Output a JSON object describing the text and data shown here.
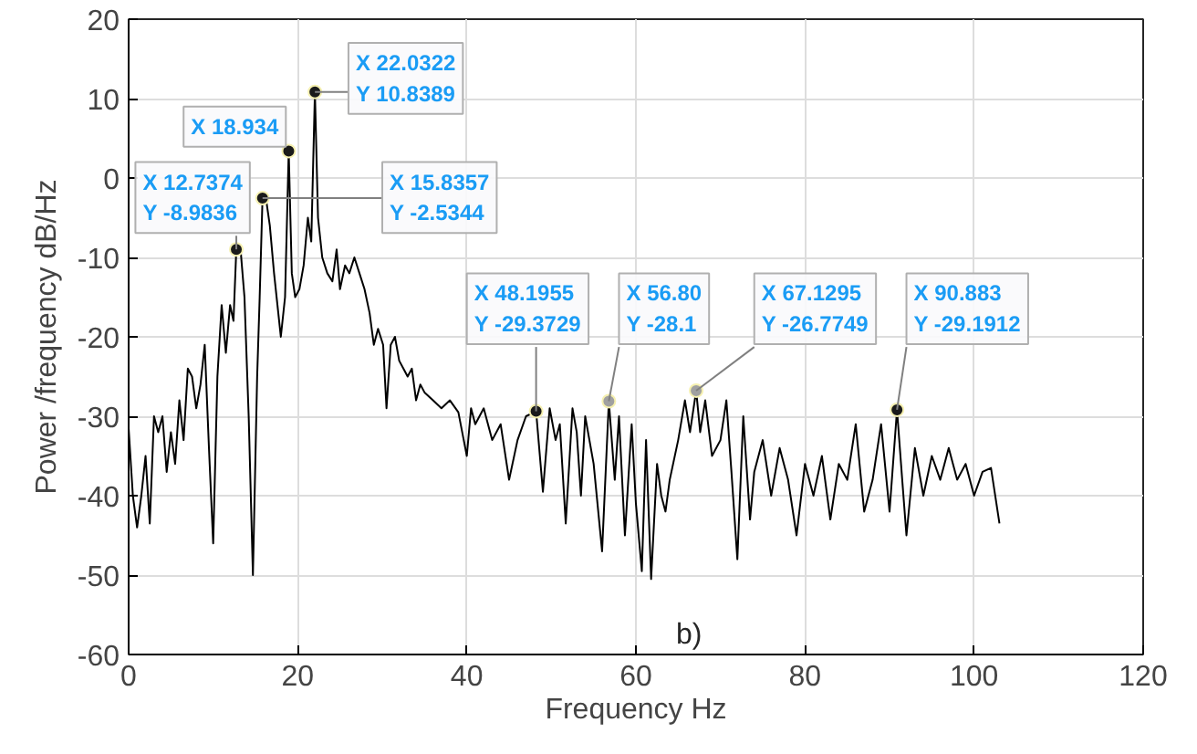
{
  "chart_data": {
    "type": "line",
    "xlabel": "Frequency Hz",
    "ylabel": "Power /frequency dB/Hz",
    "xlim": [
      0,
      120
    ],
    "ylim": [
      -60,
      20
    ],
    "xticks": [
      0,
      20,
      40,
      60,
      80,
      100,
      120
    ],
    "yticks": [
      -60,
      -50,
      -40,
      -30,
      -20,
      -10,
      0,
      10,
      20
    ],
    "grid": true,
    "series": [
      {
        "color": "#000000",
        "line_style": "solid",
        "marker": "none",
        "x": [
          0,
          0.5,
          1,
          1.5,
          2,
          2.5,
          3,
          3.5,
          4,
          4.5,
          5,
          5.5,
          6,
          6.5,
          7,
          7.5,
          8,
          8.5,
          9,
          9.5,
          10,
          10.5,
          11,
          11.5,
          12,
          12.4,
          12.7374,
          13.2,
          13.7,
          14.2,
          14.7,
          15.2,
          15.5,
          15.8357,
          16.3,
          16.7,
          17.2,
          17.6,
          18.0,
          18.5,
          18.934,
          19.3,
          19.7,
          20.2,
          20.7,
          21.2,
          21.6,
          22.0322,
          22.4,
          22.9,
          23.5,
          24.1,
          24.6,
          25,
          25.6,
          26.1,
          26.7,
          27.3,
          27.9,
          28.5,
          29,
          29.5,
          30.1,
          30.5,
          31,
          31.5,
          32,
          32.5,
          33,
          33.5,
          34,
          34.5,
          35,
          36,
          37,
          38,
          39,
          40,
          40.5,
          41,
          42,
          43,
          44,
          45,
          46,
          47,
          48.1955,
          49,
          49.8,
          50.5,
          51,
          51.7,
          52.5,
          53,
          53.5,
          54,
          55,
          56,
          56.8,
          57.5,
          58,
          58.7,
          59.5,
          60,
          60.7,
          61.2,
          61.8,
          62.5,
          63,
          63.5,
          64,
          65,
          65.8,
          66.4,
          67.1295,
          67.6,
          68.2,
          69,
          70,
          70.7,
          71.3,
          72,
          72.7,
          73.5,
          74,
          75,
          76,
          77,
          78,
          79,
          80,
          81,
          82,
          83,
          84,
          85,
          86,
          87,
          88,
          89,
          90,
          90.883,
          91.5,
          92,
          93,
          94,
          95,
          96,
          97,
          98,
          99,
          100,
          101,
          102,
          103
        ],
        "values": [
          -31.5,
          -40,
          -44,
          -40,
          -35,
          -43.5,
          -30,
          -32,
          -30,
          -37,
          -32,
          -36,
          -28,
          -33,
          -24,
          -25,
          -29,
          -26,
          -21,
          -34,
          -46,
          -25,
          -16,
          -22,
          -16,
          -18,
          -8.9836,
          -8.5,
          -15,
          -30,
          -50,
          -25,
          -15,
          -2.5344,
          -3,
          -6,
          -12,
          -16,
          -20,
          -15,
          3.4,
          -12,
          -15,
          -14,
          -11,
          -5,
          -8,
          10.8389,
          -5,
          -10,
          -12,
          -13,
          -9,
          -14,
          -11,
          -12,
          -10,
          -12,
          -14,
          -17,
          -21,
          -19,
          -21,
          -29,
          -21,
          -20,
          -23,
          -24,
          -25,
          -24,
          -28,
          -26,
          -27,
          -28,
          -29,
          -28,
          -29.5,
          -35,
          -29,
          -31,
          -29,
          -33,
          -31,
          -38,
          -33,
          -30,
          -29.3729,
          -39.5,
          -29,
          -33,
          -31,
          -43.5,
          -29,
          -32,
          -40,
          -30,
          -36,
          -47,
          -28.1,
          -38,
          -30,
          -45,
          -31,
          -41,
          -49.5,
          -33,
          -50.5,
          -36,
          -40,
          -42,
          -38,
          -33,
          -28,
          -32,
          -26.7749,
          -32,
          -28,
          -35,
          -33,
          -28,
          -37,
          -48,
          -30,
          -43,
          -37,
          -33,
          -40,
          -34,
          -38,
          -45,
          -36,
          -40,
          -35,
          -43,
          -36,
          -38,
          -31,
          -42,
          -38,
          -31,
          -42,
          -29.1912,
          -38,
          -45,
          -34,
          -40,
          -35,
          -38,
          -34,
          -38,
          -36,
          -40,
          -37,
          -36.5,
          -43.5
        ]
      },
      {
        "type": "scatter",
        "color": "#1a1a1a",
        "marker": "circle",
        "x": [
          12.7374,
          15.8357,
          18.934,
          22.0322,
          48.1955,
          56.8,
          67.1295,
          90.883
        ],
        "values": [
          -8.9836,
          -2.5344,
          3.4,
          10.8389,
          -29.3729,
          -28.1,
          -26.7749,
          -29.1912
        ],
        "colors": [
          "#1a1a1a",
          "#1a1a1a",
          "#1a1a1a",
          "#1a1a1a",
          "#1a1a1a",
          "#a0a0a0",
          "#a0a0a0",
          "#1a1a1a"
        ]
      }
    ],
    "annotations": [
      {
        "text": "X 12.7374\nY -8.9836",
        "x": 12.7374,
        "y": -8.9836
      },
      {
        "text": "X 15.8357\nY -2.5344",
        "x": 15.8357,
        "y": -2.5344
      },
      {
        "text": "X 18.934",
        "x": 18.934,
        "y": 3.4
      },
      {
        "text": "X 22.0322\nY 10.8389",
        "x": 22.0322,
        "y": 10.8389
      },
      {
        "text": "X 48.1955\nY -29.3729",
        "x": 48.1955,
        "y": -29.3729
      },
      {
        "text": "X 56.80\nY -28.1",
        "x": 56.8,
        "y": -28.1
      },
      {
        "text": "X 67.1295\nY -26.7749",
        "x": 67.1295,
        "y": -26.7749
      },
      {
        "text": "X 90.883\nY -29.1912",
        "x": 90.883,
        "y": -29.1912
      },
      "b)"
    ]
  }
}
